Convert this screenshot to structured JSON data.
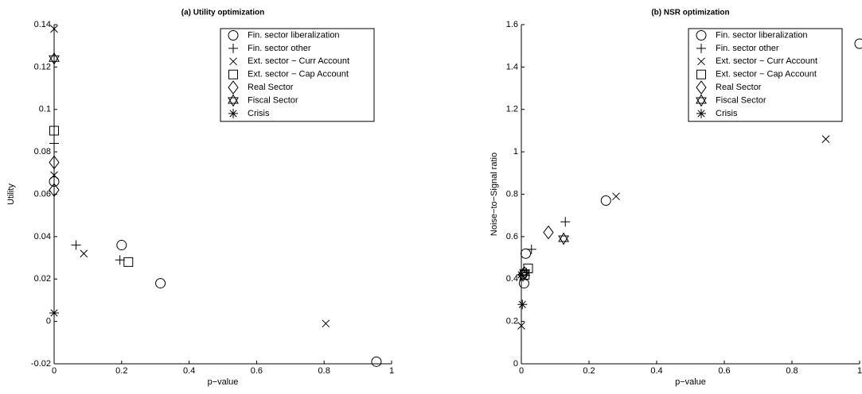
{
  "chart_data": [
    {
      "type": "scatter",
      "title": "(a) Utility optimization",
      "xlabel": "p−value",
      "ylabel": "Utility",
      "xlim": [
        0,
        1
      ],
      "xticks": [
        0,
        0.2,
        0.4,
        0.6,
        0.8,
        1
      ],
      "ylim": [
        -0.02,
        0.14
      ],
      "yticks": [
        -0.02,
        0,
        0.02,
        0.04,
        0.06,
        0.08,
        0.1,
        0.12,
        0.14
      ],
      "grid": false,
      "legend": "upper right",
      "series": [
        {
          "name": "Fin. sector liberalization",
          "marker": "circle",
          "color": "#000000",
          "x": [
            0,
            0.2,
            0.315,
            0.955
          ],
          "values": [
            0.066,
            0.036,
            0.018,
            -0.019
          ]
        },
        {
          "name": "Fin. sector other",
          "marker": "plus",
          "color": "#000000",
          "x": [
            0,
            0.065,
            0.195
          ],
          "values": [
            0.084,
            0.036,
            0.029
          ]
        },
        {
          "name": "Ext. sector − Curr Account",
          "marker": "x",
          "color": "#000000",
          "x": [
            0,
            0,
            0.088,
            0.805
          ],
          "values": [
            0.138,
            0.069,
            0.032,
            -0.001
          ]
        },
        {
          "name": "Ext. sector − Cap Account",
          "marker": "square",
          "color": "#000000",
          "x": [
            0,
            0.22
          ],
          "values": [
            0.09,
            0.028
          ]
        },
        {
          "name": "Real Sector",
          "marker": "diamond",
          "color": "#000000",
          "x": [
            0,
            0
          ],
          "values": [
            0.075,
            0.062
          ]
        },
        {
          "name": "Fiscal Sector",
          "marker": "hexagram",
          "color": "#000000",
          "x": [
            0
          ],
          "values": [
            0.124
          ]
        },
        {
          "name": "Crisis",
          "marker": "asterisk",
          "color": "#000000",
          "x": [
            0
          ],
          "values": [
            0.004
          ]
        }
      ]
    },
    {
      "type": "scatter",
      "title": "(b) NSR optimization",
      "xlabel": "p−value",
      "ylabel": "Noise−to−Signal ratio",
      "xlim": [
        0,
        1
      ],
      "xticks": [
        0,
        0.2,
        0.4,
        0.6,
        0.8,
        1
      ],
      "ylim": [
        0,
        1.6
      ],
      "yticks": [
        0,
        0.2,
        0.4,
        0.6,
        0.8,
        1,
        1.2,
        1.4,
        1.6
      ],
      "grid": false,
      "legend": "upper right",
      "series": [
        {
          "name": "Fin. sector liberalization",
          "marker": "circle",
          "color": "#000000",
          "x": [
            0.013,
            0.008,
            0.25,
            1
          ],
          "values": [
            0.52,
            0.38,
            0.77,
            1.51
          ]
        },
        {
          "name": "Fin. sector other",
          "marker": "plus",
          "color": "#000000",
          "x": [
            0.03,
            0.13,
            0.015
          ],
          "values": [
            0.54,
            0.67,
            0.43
          ]
        },
        {
          "name": "Ext. sector − Curr Account",
          "marker": "x",
          "color": "#000000",
          "x": [
            0.28,
            0.9,
            0,
            0.005
          ],
          "values": [
            0.79,
            1.06,
            0.18,
            0.41
          ]
        },
        {
          "name": "Ext. sector − Cap Account",
          "marker": "square",
          "color": "#000000",
          "x": [
            0.02,
            0.01
          ],
          "values": [
            0.45,
            0.42
          ]
        },
        {
          "name": "Real Sector",
          "marker": "diamond",
          "color": "#000000",
          "x": [
            0.08,
            0.005
          ],
          "values": [
            0.62,
            0.42
          ]
        },
        {
          "name": "Fiscal Sector",
          "marker": "hexagram",
          "color": "#000000",
          "x": [
            0.125,
            0.01
          ],
          "values": [
            0.59,
            0.43
          ]
        },
        {
          "name": "Crisis",
          "marker": "asterisk",
          "color": "#000000",
          "x": [
            0.003,
            0
          ],
          "values": [
            0.28,
            0.42
          ]
        }
      ]
    }
  ]
}
